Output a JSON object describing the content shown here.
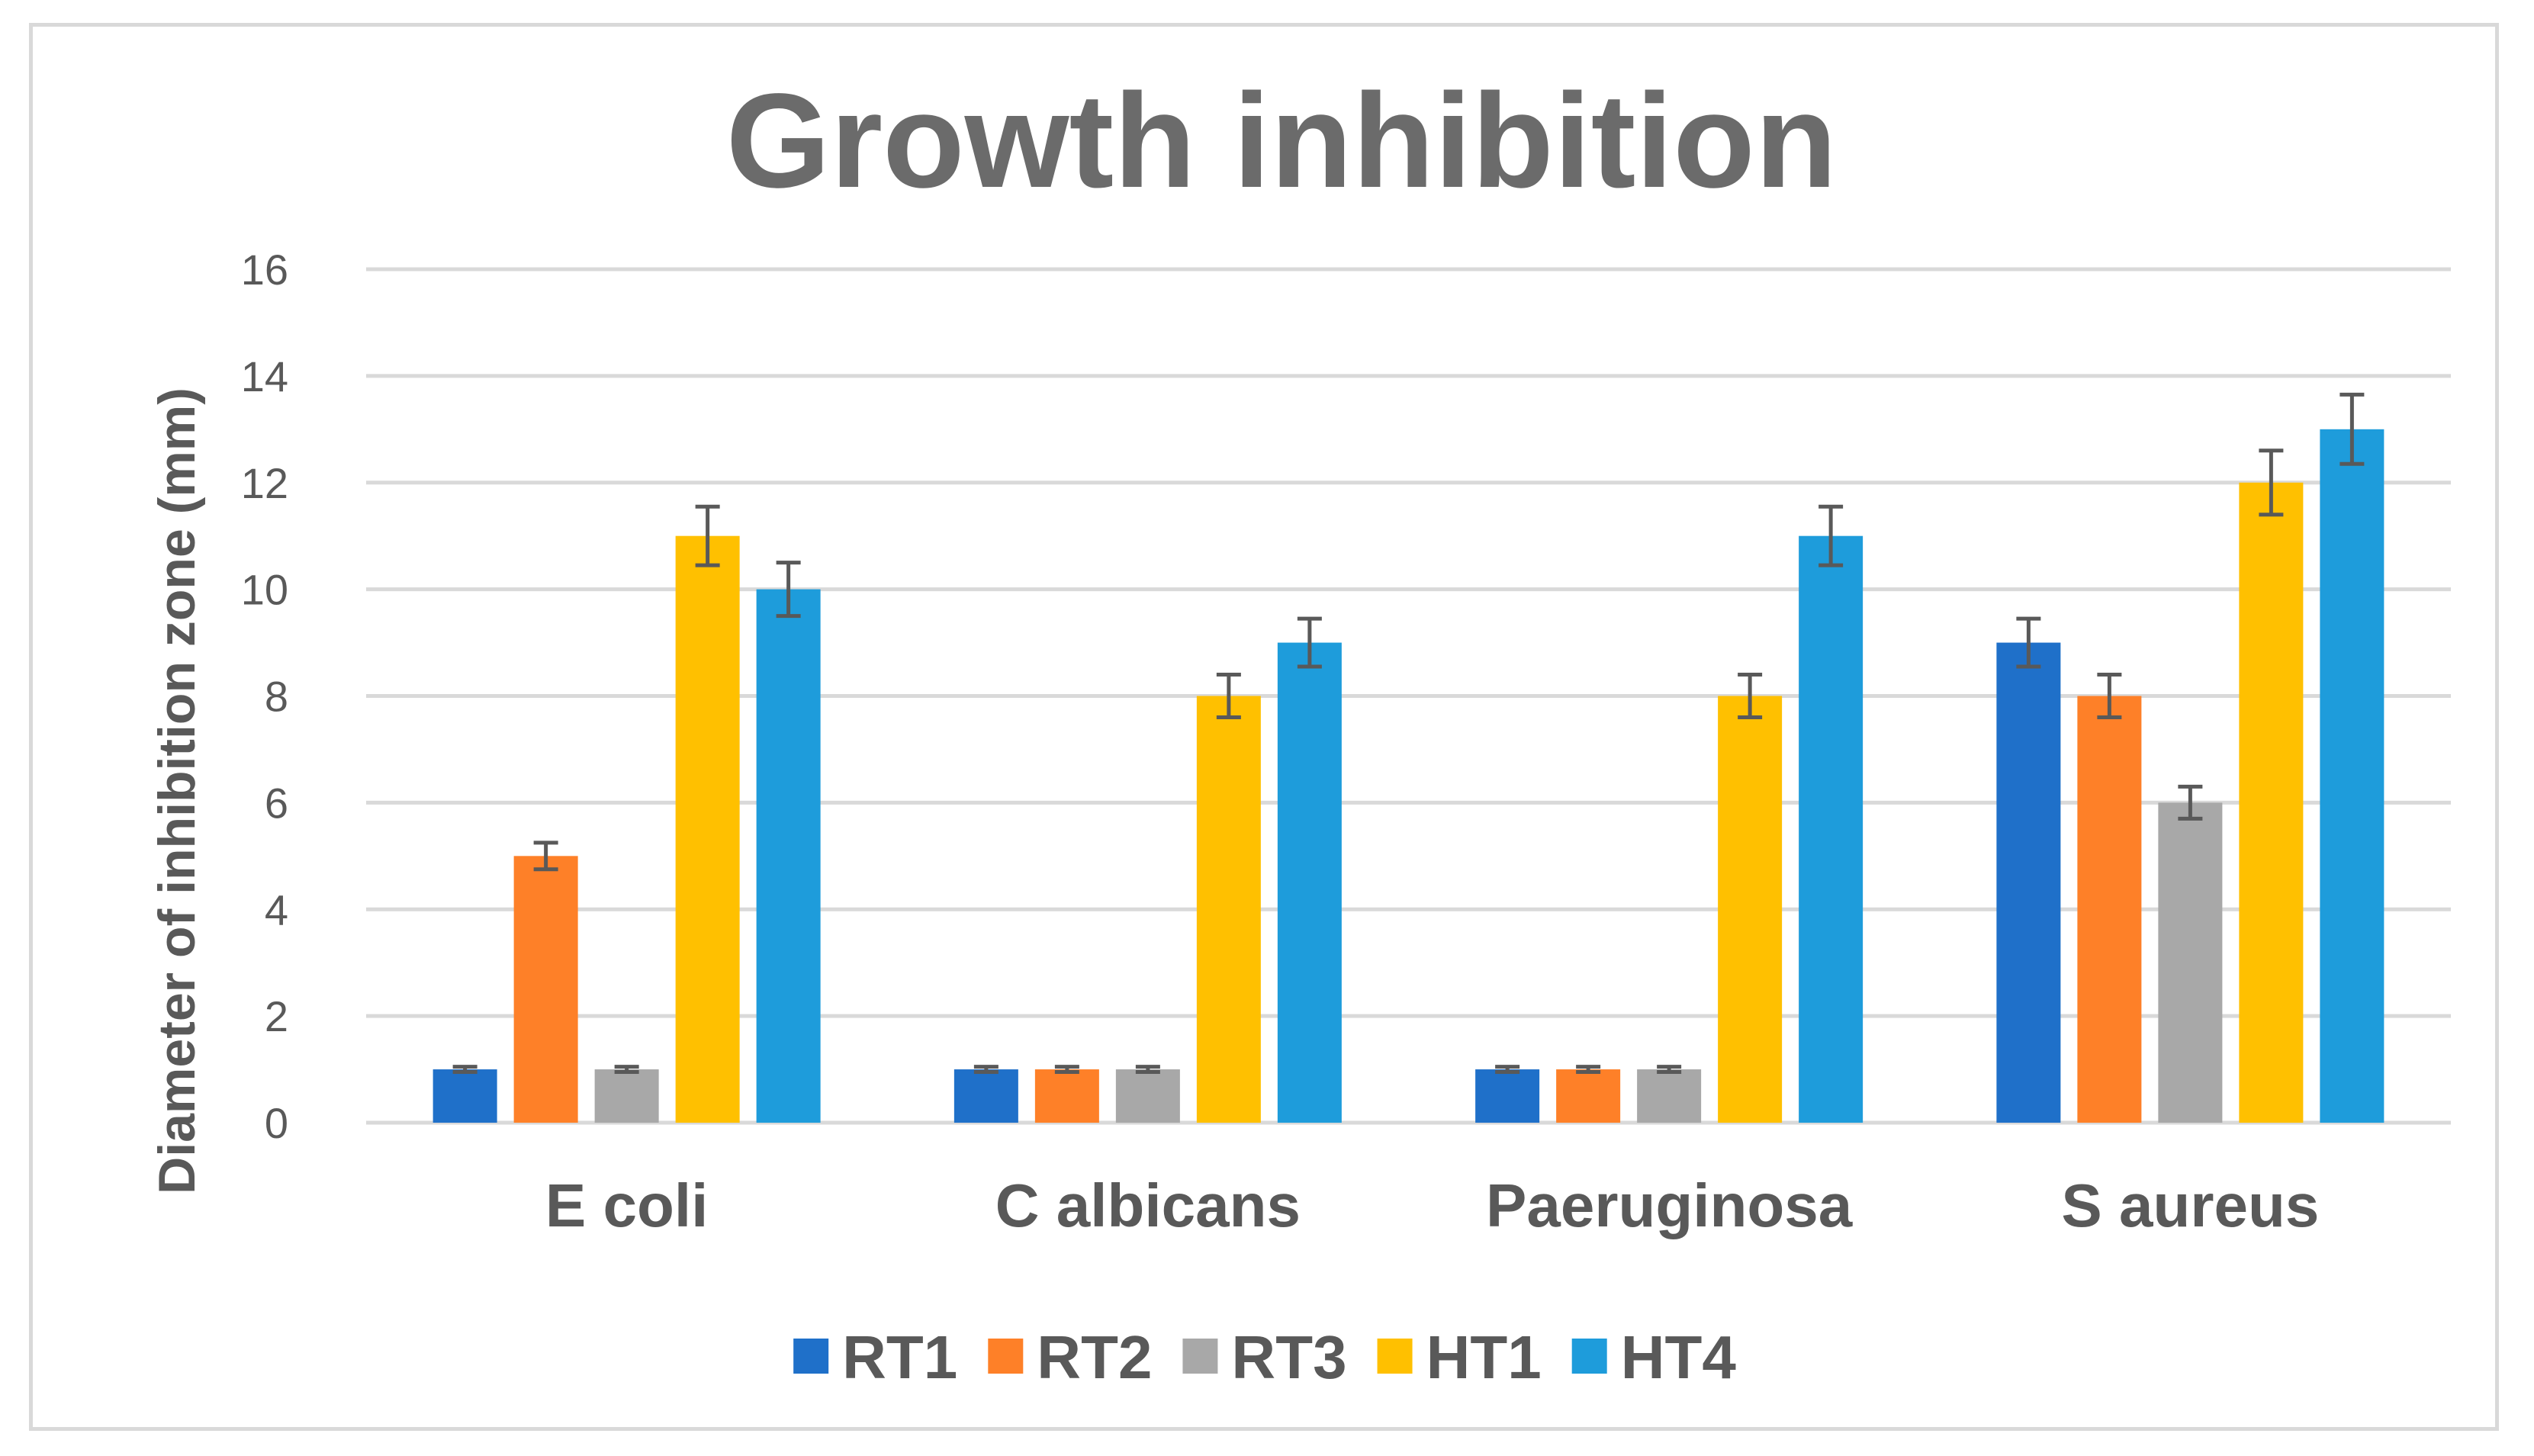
{
  "chart_data": {
    "type": "bar",
    "title": "Growth inhibition",
    "xlabel": "",
    "ylabel": "Diameter of inhibition zone (mm)",
    "ylim": [
      0,
      16
    ],
    "yticks": [
      0,
      2,
      4,
      6,
      8,
      10,
      12,
      14,
      16
    ],
    "grid": true,
    "legend_position": "bottom",
    "categories": [
      "E coli",
      "C albicans",
      "Paeruginosa",
      "S aureus"
    ],
    "series": [
      {
        "name": "RT1",
        "color": "#1f70c9",
        "values": [
          1,
          1,
          1,
          9
        ],
        "errors": [
          0.05,
          0.05,
          0.05,
          0.45
        ]
      },
      {
        "name": "RT2",
        "color": "#fe8028",
        "values": [
          5,
          1,
          1,
          8
        ],
        "errors": [
          0.25,
          0.05,
          0.05,
          0.4
        ]
      },
      {
        "name": "RT3",
        "color": "#a8a8a8",
        "values": [
          1,
          1,
          1,
          6
        ],
        "errors": [
          0.05,
          0.05,
          0.05,
          0.3
        ]
      },
      {
        "name": "HT1",
        "color": "#ffc000",
        "values": [
          11,
          8,
          8,
          12
        ],
        "errors": [
          0.55,
          0.4,
          0.4,
          0.6
        ]
      },
      {
        "name": "HT4",
        "color": "#1e9cdb",
        "values": [
          10,
          9,
          11,
          13
        ],
        "errors": [
          0.5,
          0.45,
          0.55,
          0.65
        ]
      }
    ]
  }
}
